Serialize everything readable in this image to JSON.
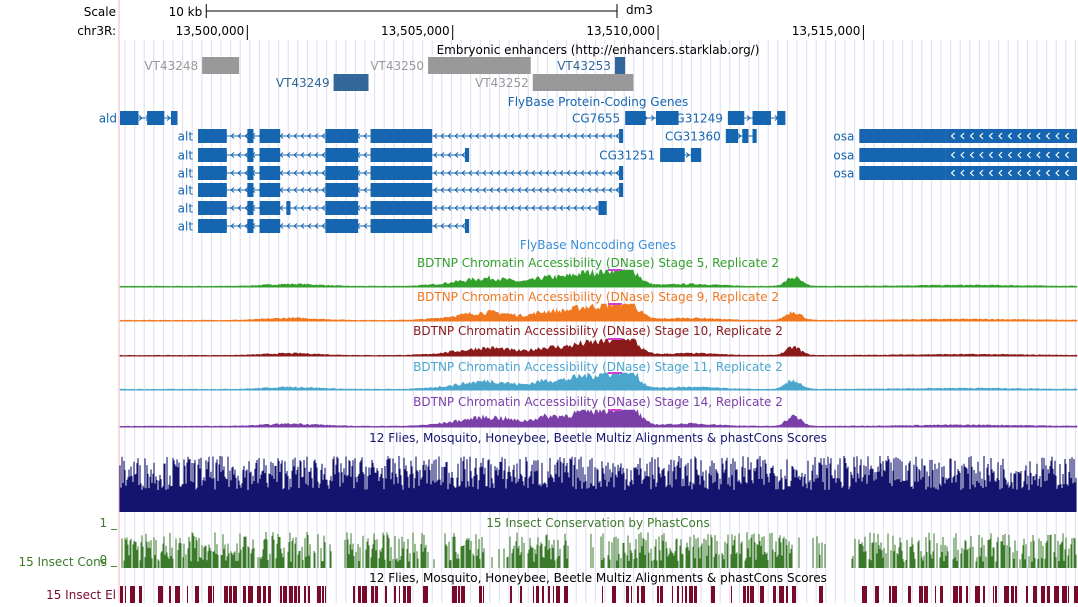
{
  "header": {
    "scale_label": "Scale",
    "scale_bar_label": "10 kb",
    "assembly": "dm3",
    "chrom_label": "chr3R:",
    "positions": [
      {
        "label": "13,500,000",
        "bp": 13500000
      },
      {
        "label": "13,505,000",
        "bp": 13505000
      },
      {
        "label": "13,510,000",
        "bp": 13510000
      },
      {
        "label": "13,515,000",
        "bp": 13515000
      }
    ],
    "scale_bar_bp": [
      13499000,
      13509000
    ]
  },
  "view": {
    "start_bp": 13496900,
    "end_bp": 13520200
  },
  "colors": {
    "enhancer_grey": "#999999",
    "enhancer_blue": "#336699",
    "gene_blue": "#1565b0",
    "noncoding_label": "#3a8fd9",
    "dnase_stage5": "#33a02c",
    "dnase_stage9": "#f07820",
    "dnase_stage10": "#8b1a1a",
    "dnase_stage11": "#4aa6cc",
    "dnase_stage14": "#7b3fa8",
    "multiz": "#14146e",
    "phastcons": "#3a7a2a",
    "elements": "#7a0a2a",
    "grid": "#dcdcf5"
  },
  "enhancers": {
    "track_title": "Embryonic enhancers (http://enhancers.starklab.org/)",
    "items": [
      {
        "name": "VT43248",
        "row": 0,
        "start_bp": 13498900,
        "end_bp": 13499800,
        "color": "grey"
      },
      {
        "name": "VT43249",
        "row": 1,
        "start_bp": 13502100,
        "end_bp": 13502950,
        "color": "blue"
      },
      {
        "name": "VT43250",
        "row": 0,
        "start_bp": 13504400,
        "end_bp": 13506900,
        "color": "grey"
      },
      {
        "name": "VT43252",
        "row": 1,
        "start_bp": 13506950,
        "end_bp": 13509400,
        "color": "grey"
      },
      {
        "name": "VT43253",
        "row": 0,
        "start_bp": 13508950,
        "end_bp": 13509200,
        "color": "blue"
      }
    ]
  },
  "genes": {
    "track_title": "FlyBase Protein-Coding Genes",
    "items": [
      {
        "name": "ald",
        "strand": "+",
        "label_side": "left",
        "row": 0,
        "start_bp": 13496900,
        "end_bp": 13498300,
        "exons": [
          [
            13496900,
            13497350
          ],
          [
            13497560,
            13497980
          ],
          [
            13498140,
            13498300
          ]
        ]
      },
      {
        "name": "CG7655",
        "strand": "+",
        "label_side": "left",
        "row": 0,
        "start_bp": 13509200,
        "end_bp": 13510500,
        "exons": [
          [
            13509200,
            13509700
          ],
          [
            13509950,
            13510500
          ]
        ]
      },
      {
        "name": "CG31249",
        "strand": "+",
        "label_side": "left",
        "row": 0,
        "start_bp": 13511700,
        "end_bp": 13513100,
        "exons": [
          [
            13511700,
            13512100
          ],
          [
            13512300,
            13512750
          ],
          [
            13512900,
            13513100
          ]
        ]
      },
      {
        "name": "alt",
        "strand": "-",
        "label_side": "left",
        "row": 1,
        "start_bp": 13498800,
        "end_bp": 13509150,
        "exons": [
          [
            13498800,
            13499500
          ],
          [
            13500000,
            13500150
          ],
          [
            13500300,
            13500800
          ],
          [
            13501900,
            13502700
          ],
          [
            13503000,
            13504500
          ],
          [
            13509050,
            13509150
          ]
        ]
      },
      {
        "name": "CG31360",
        "strand": "+",
        "label_side": "left",
        "row": 1,
        "start_bp": 13511650,
        "end_bp": 13512400,
        "exons": [
          [
            13511650,
            13511950
          ],
          [
            13512050,
            13512200
          ],
          [
            13512300,
            13512400
          ]
        ]
      },
      {
        "name": "osa",
        "strand": "-",
        "label_side": "left",
        "row": 1,
        "start_bp": 13514900,
        "end_bp": 13520200,
        "exons": [
          [
            13514900,
            13517000
          ],
          [
            13517000,
            13520200
          ]
        ]
      },
      {
        "name": "alt",
        "strand": "-",
        "label_side": "left",
        "row": 2,
        "start_bp": 13498800,
        "end_bp": 13505400,
        "exons": [
          [
            13498800,
            13499500
          ],
          [
            13500000,
            13500150
          ],
          [
            13500300,
            13500800
          ],
          [
            13501900,
            13502700
          ],
          [
            13503000,
            13504500
          ],
          [
            13505300,
            13505400
          ]
        ]
      },
      {
        "name": "CG31251",
        "strand": "+",
        "label_side": "left",
        "row": 2,
        "start_bp": 13510050,
        "end_bp": 13511050,
        "exons": [
          [
            13510050,
            13510650
          ],
          [
            13510800,
            13511050
          ]
        ]
      },
      {
        "name": "osa",
        "strand": "-",
        "label_side": "left",
        "row": 2,
        "start_bp": 13514900,
        "end_bp": 13520200,
        "exons": [
          [
            13514900,
            13517000
          ],
          [
            13517000,
            13520200
          ]
        ]
      },
      {
        "name": "alt",
        "strand": "-",
        "label_side": "left",
        "row": 3,
        "start_bp": 13498800,
        "end_bp": 13509150,
        "exons": [
          [
            13498800,
            13499500
          ],
          [
            13500000,
            13500150
          ],
          [
            13500300,
            13500800
          ],
          [
            13501900,
            13502700
          ],
          [
            13503000,
            13504500
          ],
          [
            13509050,
            13509150
          ]
        ]
      },
      {
        "name": "osa",
        "strand": "-",
        "label_side": "left",
        "row": 3,
        "start_bp": 13514900,
        "end_bp": 13520200,
        "exons": [
          [
            13514900,
            13517000
          ],
          [
            13517000,
            13520200
          ]
        ]
      },
      {
        "name": "alt",
        "strand": "-",
        "label_side": "left",
        "row": 4,
        "start_bp": 13498800,
        "end_bp": 13509150,
        "exons": [
          [
            13498800,
            13499500
          ],
          [
            13500000,
            13500150
          ],
          [
            13500300,
            13500800
          ],
          [
            13501900,
            13502700
          ],
          [
            13503000,
            13504500
          ],
          [
            13509050,
            13509150
          ]
        ]
      },
      {
        "name": "alt",
        "strand": "-",
        "label_side": "left",
        "row": 5,
        "start_bp": 13498800,
        "end_bp": 13508750,
        "exons": [
          [
            13498800,
            13499500
          ],
          [
            13500000,
            13500150
          ],
          [
            13500300,
            13500800
          ],
          [
            13500950,
            13501050
          ],
          [
            13501900,
            13502700
          ],
          [
            13503000,
            13504500
          ],
          [
            13508550,
            13508750
          ]
        ]
      },
      {
        "name": "alt",
        "strand": "-",
        "label_side": "left",
        "row": 6,
        "start_bp": 13498800,
        "end_bp": 13505400,
        "exons": [
          [
            13498800,
            13499500
          ],
          [
            13500000,
            13500150
          ],
          [
            13500300,
            13500800
          ],
          [
            13501900,
            13502700
          ],
          [
            13503000,
            13504500
          ],
          [
            13505300,
            13505400
          ]
        ]
      }
    ]
  },
  "noncoding": {
    "track_title": "FlyBase Noncoding Genes"
  },
  "dnase": [
    {
      "title": "BDTNP Chromatin Accessibility (DNase) Stage 5, Replicate 2",
      "color_key": "dnase_stage5",
      "peak_scale": 1.0
    },
    {
      "title": "BDTNP Chromatin Accessibility (DNase) Stage 9, Replicate 2",
      "color_key": "dnase_stage9",
      "peak_scale": 1.0
    },
    {
      "title": "BDTNP Chromatin Accessibility (DNase) Stage 10, Replicate 2",
      "color_key": "dnase_stage10",
      "peak_scale": 0.9
    },
    {
      "title": "BDTNP Chromatin Accessibility (DNase) Stage 11, Replicate 2",
      "color_key": "dnase_stage11",
      "peak_scale": 1.0
    },
    {
      "title": "BDTNP Chromatin Accessibility (DNase) Stage 14, Replicate 2",
      "color_key": "dnase_stage14",
      "peak_scale": 1.1
    }
  ],
  "multiz": {
    "track_title": "12 Flies, Mosquito, Honeybee, Beetle Multiz Alignments & phastCons Scores"
  },
  "phastcons": {
    "track_title": "15 Insect Conservation by PhastCons",
    "side_label": "15 Insect Cons",
    "axis_max": "1 _",
    "axis_min": "0 _"
  },
  "elements": {
    "track_title": "12 Flies, Mosquito, Honeybee, Beetle Multiz Alignments & phastCons Scores",
    "side_label": "15 Insect El"
  }
}
